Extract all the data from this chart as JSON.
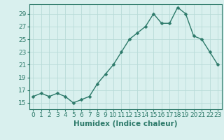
{
  "x": [
    0,
    1,
    2,
    3,
    4,
    5,
    6,
    7,
    8,
    9,
    10,
    11,
    12,
    13,
    14,
    15,
    16,
    17,
    18,
    19,
    20,
    21,
    22,
    23
  ],
  "y": [
    16.0,
    16.5,
    16.0,
    16.5,
    16.0,
    15.0,
    15.5,
    16.0,
    18.0,
    19.5,
    21.0,
    23.0,
    25.0,
    26.0,
    27.0,
    29.0,
    27.5,
    27.5,
    30.0,
    29.0,
    25.5,
    25.0,
    23.0,
    21.0
  ],
  "line_color": "#2d7a6a",
  "marker": "D",
  "marker_size": 2.5,
  "bg_color": "#d9f0ee",
  "grid_color": "#b8dbd8",
  "xlabel": "Humidex (Indice chaleur)",
  "xlim": [
    -0.5,
    23.5
  ],
  "ylim": [
    14.0,
    30.5
  ],
  "yticks": [
    15,
    17,
    19,
    21,
    23,
    25,
    27,
    29
  ],
  "xtick_labels": [
    "0",
    "1",
    "2",
    "3",
    "4",
    "5",
    "6",
    "7",
    "8",
    "9",
    "10",
    "11",
    "12",
    "13",
    "14",
    "15",
    "16",
    "17",
    "18",
    "19",
    "20",
    "21",
    "22",
    "23"
  ],
  "xlabel_fontsize": 7.5,
  "tick_fontsize": 6.5,
  "linewidth": 1.0
}
